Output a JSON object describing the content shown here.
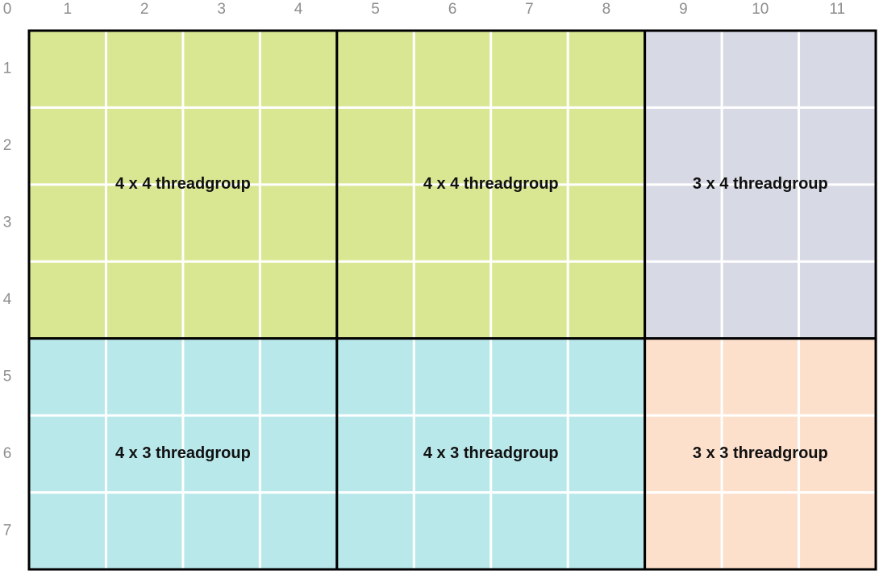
{
  "column_labels": [
    "0",
    "1",
    "2",
    "3",
    "4",
    "5",
    "6",
    "7",
    "8",
    "9",
    "10",
    "11"
  ],
  "row_labels": [
    "1",
    "2",
    "3",
    "4",
    "5",
    "6",
    "7"
  ],
  "blocks": [
    {
      "label": "4 x 4 threadgroup",
      "color": "#d9e793"
    },
    {
      "label": "4 x 4 threadgroup",
      "color": "#d9e793"
    },
    {
      "label": "3 x 4 threadgroup",
      "color": "#d7d9e4"
    },
    {
      "label": "4 x 3 threadgroup",
      "color": "#b9e8eb"
    },
    {
      "label": "4 x 3 threadgroup",
      "color": "#b9e8eb"
    },
    {
      "label": "3 x 3 threadgroup",
      "color": "#fde0cc"
    }
  ]
}
